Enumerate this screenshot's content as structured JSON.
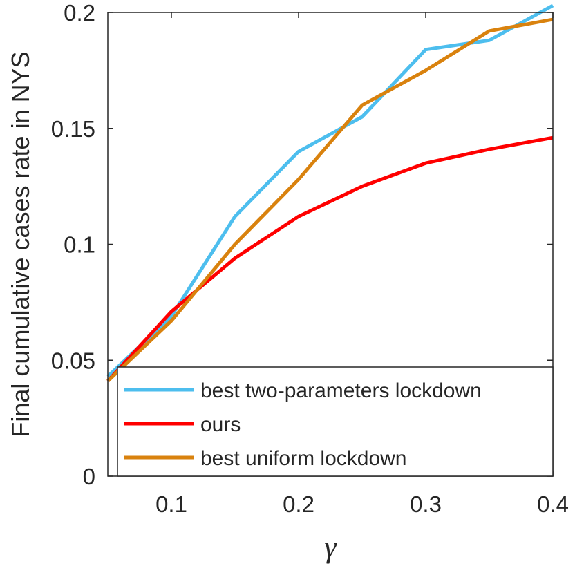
{
  "chart_data": {
    "type": "line",
    "xlabel": "γ",
    "ylabel": "Final cumulative cases rate in NYS",
    "xlim": [
      0.05,
      0.4
    ],
    "ylim": [
      0,
      0.2
    ],
    "xticks": [
      "0.1",
      "0.2",
      "0.3",
      "0.4"
    ],
    "yticks": [
      "0",
      "0.05",
      "0.1",
      "0.15",
      "0.2"
    ],
    "grid": false,
    "legend_position": "bottom-right",
    "series": [
      {
        "name": "best two-parameters lockdown",
        "color": "#4dbeee",
        "x": [
          0.05,
          0.1,
          0.15,
          0.2,
          0.25,
          0.3,
          0.35,
          0.4
        ],
        "y": [
          0.043,
          0.069,
          0.112,
          0.14,
          0.155,
          0.184,
          0.188,
          0.203
        ]
      },
      {
        "name": "ours",
        "color": "#ff0000",
        "x": [
          0.05,
          0.1,
          0.15,
          0.2,
          0.25,
          0.3,
          0.35,
          0.4
        ],
        "y": [
          0.041,
          0.071,
          0.094,
          0.112,
          0.125,
          0.135,
          0.141,
          0.146
        ]
      },
      {
        "name": "best uniform lockdown",
        "color": "#d9820e",
        "x": [
          0.05,
          0.1,
          0.15,
          0.2,
          0.25,
          0.3,
          0.35,
          0.4
        ],
        "y": [
          0.041,
          0.067,
          0.1,
          0.128,
          0.16,
          0.175,
          0.192,
          0.197
        ]
      }
    ]
  }
}
